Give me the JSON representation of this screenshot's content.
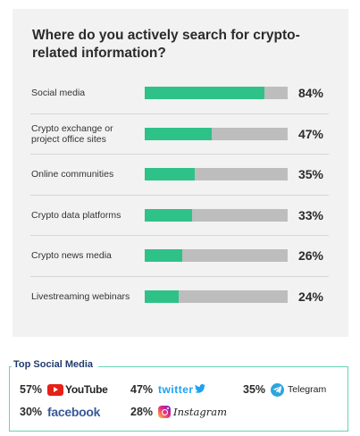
{
  "chart_data": {
    "type": "bar",
    "orientation": "horizontal",
    "title": "Where do you actively search for crypto-related information?",
    "categories": [
      "Social media",
      "Crypto exchange or project office sites",
      "Online communities",
      "Crypto data platforms",
      "Crypto news media",
      "Livestreaming webinars"
    ],
    "values": [
      84,
      47,
      35,
      33,
      26,
      24
    ],
    "value_labels": [
      "84%",
      "47%",
      "35%",
      "33%",
      "26%",
      "24%"
    ],
    "xlim": [
      0,
      100
    ],
    "colors": {
      "fill": "#2ec288",
      "track": "#bdbdbd"
    }
  },
  "social": {
    "title": "Top Social Media",
    "items": [
      {
        "pct": "57%",
        "name": "YouTube",
        "icon": "youtube-icon"
      },
      {
        "pct": "47%",
        "name": "twitter",
        "icon": "twitter-bird-icon"
      },
      {
        "pct": "35%",
        "name": "Telegram",
        "icon": "telegram-icon"
      },
      {
        "pct": "30%",
        "name": "facebook",
        "icon": ""
      },
      {
        "pct": "28%",
        "name": "Instagram",
        "icon": "instagram-icon"
      }
    ]
  }
}
